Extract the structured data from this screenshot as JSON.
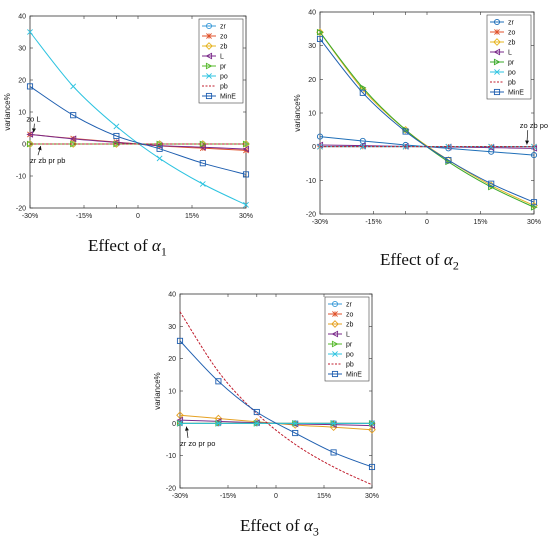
{
  "panels": [
    {
      "caption": {
        "prefix": "Effect of",
        "symbol": "α",
        "sub": "1"
      },
      "chart_data": {
        "type": "line",
        "x": [
          "-30%",
          "-15%",
          "",
          "0",
          "15%",
          "30%"
        ],
        "xlim": [
          -30,
          30
        ],
        "ylim": [
          -20,
          40
        ],
        "yticks": [
          40,
          30,
          20,
          10,
          0,
          -10,
          -20
        ],
        "xlabel": "",
        "ylabel": "variance%",
        "legend": "top-right",
        "series": [
          {
            "name": "zr",
            "color": "#3a9ad9",
            "marker": "circle",
            "points": [
              [
                -30,
                0
              ],
              [
                -18,
                0
              ],
              [
                -6,
                0
              ],
              [
                6,
                0
              ],
              [
                18,
                0
              ],
              [
                30,
                0
              ]
            ]
          },
          {
            "name": "zo",
            "color": "#e0522b",
            "marker": "star",
            "points": [
              [
                -30,
                3
              ],
              [
                -18,
                1.7
              ],
              [
                -6,
                0.6
              ],
              [
                6,
                -0.6
              ],
              [
                18,
                -1.3
              ],
              [
                30,
                -2
              ]
            ]
          },
          {
            "name": "zb",
            "color": "#e6b422",
            "marker": "diamond",
            "points": [
              [
                -30,
                0
              ],
              [
                -18,
                0
              ],
              [
                -6,
                0
              ],
              [
                6,
                0
              ],
              [
                18,
                0
              ],
              [
                30,
                0
              ]
            ]
          },
          {
            "name": "L",
            "color": "#7a2a8a",
            "marker": "triangle-left",
            "points": [
              [
                -30,
                3
              ],
              [
                -18,
                1.6
              ],
              [
                -6,
                0.5
              ],
              [
                6,
                -0.5
              ],
              [
                18,
                -1
              ],
              [
                30,
                -1.6
              ]
            ]
          },
          {
            "name": "pr",
            "color": "#55b82a",
            "marker": "triangle-right",
            "points": [
              [
                -30,
                0
              ],
              [
                -18,
                0
              ],
              [
                -6,
                0
              ],
              [
                6,
                0
              ],
              [
                18,
                0
              ],
              [
                30,
                0
              ]
            ]
          },
          {
            "name": "po",
            "color": "#2cc3e0",
            "marker": "x",
            "points": [
              [
                -30,
                35
              ],
              [
                -18,
                18
              ],
              [
                -6,
                5.5
              ],
              [
                6,
                -4.5
              ],
              [
                18,
                -12.5
              ],
              [
                30,
                -19
              ]
            ]
          },
          {
            "name": "pb",
            "color": "#c01c2c",
            "marker": "none",
            "dash": true,
            "points": [
              [
                -30,
                0
              ],
              [
                -18,
                0
              ],
              [
                -6,
                0
              ],
              [
                6,
                0
              ],
              [
                18,
                0
              ],
              [
                30,
                0
              ]
            ]
          },
          {
            "name": "MinE",
            "color": "#1f5fb0",
            "marker": "square",
            "points": [
              [
                -30,
                18
              ],
              [
                -18,
                9
              ],
              [
                -6,
                2.5
              ],
              [
                6,
                -1.5
              ],
              [
                18,
                -6
              ],
              [
                30,
                -9.5
              ]
            ]
          }
        ],
        "annotations": [
          {
            "text": "zo L",
            "tx": -31,
            "ty": 7,
            "ax": -29,
            "ay": 3.6
          },
          {
            "text": "zr zb pr pb",
            "tx": -30,
            "ty": -6,
            "ax": -27,
            "ay": -0.6
          }
        ]
      }
    },
    {
      "caption": {
        "prefix": "Effect of",
        "symbol": "α",
        "sub": "2"
      },
      "chart_data": {
        "type": "line",
        "x": [
          "-30%",
          "-15%",
          "",
          "0",
          "15%",
          "30%"
        ],
        "xlim": [
          -30,
          30
        ],
        "ylim": [
          -20,
          40
        ],
        "yticks": [
          40,
          30,
          20,
          10,
          0,
          -10,
          -20
        ],
        "xlabel": "",
        "ylabel": "variance%",
        "legend": "top-right",
        "series": [
          {
            "name": "zr",
            "color": "#1f6fb8",
            "marker": "circle",
            "points": [
              [
                -30,
                3
              ],
              [
                -18,
                1.7
              ],
              [
                -6,
                0.5
              ],
              [
                6,
                -0.5
              ],
              [
                18,
                -1.5
              ],
              [
                30,
                -2.5
              ]
            ]
          },
          {
            "name": "zo",
            "color": "#e0522b",
            "marker": "star",
            "points": [
              [
                -30,
                0
              ],
              [
                -18,
                0
              ],
              [
                -6,
                0
              ],
              [
                6,
                0
              ],
              [
                18,
                0
              ],
              [
                30,
                0
              ]
            ]
          },
          {
            "name": "zb",
            "color": "#e6b422",
            "marker": "diamond",
            "points": [
              [
                -30,
                34
              ],
              [
                -18,
                17
              ],
              [
                -6,
                5
              ],
              [
                6,
                -4
              ],
              [
                18,
                -11.5
              ],
              [
                30,
                -17.5
              ]
            ]
          },
          {
            "name": "L",
            "color": "#7a2a8a",
            "marker": "triangle-left",
            "points": [
              [
                -30,
                0.5
              ],
              [
                -18,
                0.3
              ],
              [
                -6,
                0.1
              ],
              [
                6,
                -0.1
              ],
              [
                18,
                -0.3
              ],
              [
                30,
                -0.5
              ]
            ]
          },
          {
            "name": "pr",
            "color": "#3aaa2a",
            "marker": "triangle-right",
            "points": [
              [
                -30,
                34
              ],
              [
                -18,
                17.5
              ],
              [
                -6,
                5
              ],
              [
                6,
                -4.5
              ],
              [
                18,
                -12
              ],
              [
                30,
                -18
              ]
            ]
          },
          {
            "name": "po",
            "color": "#2cc3e0",
            "marker": "x",
            "points": [
              [
                -30,
                0
              ],
              [
                -18,
                0
              ],
              [
                -6,
                0
              ],
              [
                6,
                0
              ],
              [
                18,
                0
              ],
              [
                30,
                0
              ]
            ]
          },
          {
            "name": "pb",
            "color": "#c01c2c",
            "marker": "none",
            "dash": true,
            "points": [
              [
                -30,
                0
              ],
              [
                -18,
                0
              ],
              [
                -6,
                0
              ],
              [
                6,
                0
              ],
              [
                18,
                0
              ],
              [
                30,
                0
              ]
            ]
          },
          {
            "name": "MinE",
            "color": "#1f5fb0",
            "marker": "square",
            "points": [
              [
                -30,
                32
              ],
              [
                -18,
                16
              ],
              [
                -6,
                4.5
              ],
              [
                6,
                -4
              ],
              [
                18,
                -11
              ],
              [
                30,
                -16.5
              ]
            ]
          }
        ],
        "annotations": [
          {
            "text": "zo zb po pb",
            "tx": 26,
            "ty": 5.5,
            "ax": 28,
            "ay": 0.6
          }
        ]
      }
    },
    {
      "caption": {
        "prefix": "Effect of",
        "symbol": "α",
        "sub": "3"
      },
      "chart_data": {
        "type": "line",
        "x": [
          "-30%",
          "-15%",
          "",
          "0",
          "15%",
          "30%"
        ],
        "xlim": [
          -30,
          30
        ],
        "ylim": [
          -20,
          40
        ],
        "yticks": [
          40,
          30,
          20,
          10,
          0,
          -10,
          -20
        ],
        "xlabel": "",
        "ylabel": "variance%",
        "legend": "top-right",
        "series": [
          {
            "name": "zr",
            "color": "#3a9ad9",
            "marker": "circle",
            "points": [
              [
                -30,
                0
              ],
              [
                -18,
                0
              ],
              [
                -6,
                0
              ],
              [
                6,
                0
              ],
              [
                18,
                0
              ],
              [
                30,
                0
              ]
            ]
          },
          {
            "name": "zo",
            "color": "#e0522b",
            "marker": "star",
            "points": [
              [
                -30,
                0
              ],
              [
                -18,
                0
              ],
              [
                -6,
                0
              ],
              [
                6,
                0
              ],
              [
                18,
                0
              ],
              [
                30,
                0
              ]
            ]
          },
          {
            "name": "zb",
            "color": "#e6a122",
            "marker": "diamond",
            "points": [
              [
                -30,
                2.5
              ],
              [
                -18,
                1.5
              ],
              [
                -6,
                0.5
              ],
              [
                6,
                -0.5
              ],
              [
                18,
                -1.2
              ],
              [
                30,
                -2
              ]
            ]
          },
          {
            "name": "L",
            "color": "#7a2a8a",
            "marker": "triangle-left",
            "points": [
              [
                -30,
                1
              ],
              [
                -18,
                0.6
              ],
              [
                -6,
                0.2
              ],
              [
                6,
                -0.2
              ],
              [
                18,
                -0.4
              ],
              [
                30,
                -0.7
              ]
            ]
          },
          {
            "name": "pr",
            "color": "#55b82a",
            "marker": "triangle-right",
            "points": [
              [
                -30,
                0
              ],
              [
                -18,
                0
              ],
              [
                -6,
                0
              ],
              [
                6,
                0
              ],
              [
                18,
                0
              ],
              [
                30,
                0
              ]
            ]
          },
          {
            "name": "po",
            "color": "#2cc3e0",
            "marker": "x",
            "points": [
              [
                -30,
                0
              ],
              [
                -18,
                0
              ],
              [
                -6,
                0
              ],
              [
                6,
                0
              ],
              [
                18,
                0
              ],
              [
                30,
                0
              ]
            ]
          },
          {
            "name": "pb",
            "color": "#c01c2c",
            "marker": "none",
            "dash": true,
            "points": [
              [
                -30,
                34.5
              ],
              [
                -18,
                16
              ],
              [
                -6,
                3
              ],
              [
                6,
                -6.5
              ],
              [
                18,
                -13.5
              ],
              [
                30,
                -19
              ]
            ]
          },
          {
            "name": "MinE",
            "color": "#1f5fb0",
            "marker": "square",
            "points": [
              [
                -30,
                25.5
              ],
              [
                -18,
                13
              ],
              [
                -6,
                3.5
              ],
              [
                6,
                -3
              ],
              [
                18,
                -9
              ],
              [
                30,
                -13.5
              ]
            ]
          }
        ],
        "annotations": [
          {
            "text": "zr zo pr po",
            "tx": -30,
            "ty": -7,
            "ax": -28,
            "ay": -1
          }
        ]
      }
    }
  ]
}
